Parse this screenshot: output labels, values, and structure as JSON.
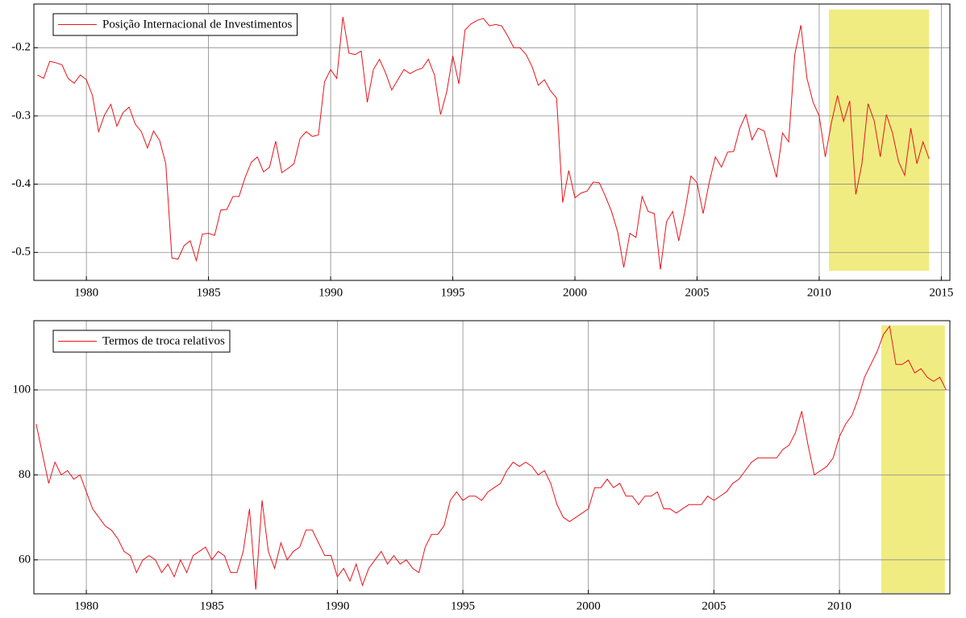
{
  "chart_data": [
    {
      "type": "line",
      "xlim": [
        1977.85,
        2015.35
      ],
      "ylim": [
        -0.541,
        -0.136
      ],
      "xticks": [
        1980,
        1985,
        1990,
        1995,
        2000,
        2005,
        2010,
        2015
      ],
      "yticks": [
        -0.5,
        -0.4,
        -0.3,
        -0.2
      ],
      "grid": true,
      "legend": "upper left",
      "highlight": {
        "x": [
          2010.4,
          2014.5
        ],
        "y": [
          -0.527,
          -0.144
        ],
        "color": "#f0ec82"
      },
      "x": [
        1978,
        1978.25,
        1978.5,
        1978.75,
        1979,
        1979.25,
        1979.5,
        1979.75,
        1980,
        1980.25,
        1980.5,
        1980.75,
        1981,
        1981.25,
        1981.5,
        1981.75,
        1982,
        1982.25,
        1982.5,
        1982.75,
        1983,
        1983.25,
        1983.5,
        1983.75,
        1984,
        1984.25,
        1984.5,
        1984.75,
        1985,
        1985.25,
        1985.5,
        1985.75,
        1986,
        1986.25,
        1986.5,
        1986.75,
        1987,
        1987.25,
        1987.5,
        1987.75,
        1988,
        1988.25,
        1988.5,
        1988.75,
        1989,
        1989.25,
        1989.5,
        1989.75,
        1990,
        1990.25,
        1990.5,
        1990.75,
        1991,
        1991.25,
        1991.5,
        1991.75,
        1992,
        1992.25,
        1992.5,
        1992.75,
        1993,
        1993.25,
        1993.5,
        1993.75,
        1994,
        1994.25,
        1994.5,
        1994.75,
        1995,
        1995.25,
        1995.5,
        1995.75,
        1996,
        1996.25,
        1996.5,
        1996.75,
        1997,
        1997.25,
        1997.5,
        1997.75,
        1998,
        1998.25,
        1998.5,
        1998.75,
        1999,
        1999.25,
        1999.5,
        1999.75,
        2000,
        2000.25,
        2000.5,
        2000.75,
        2001,
        2001.25,
        2001.5,
        2001.75,
        2002,
        2002.25,
        2002.5,
        2002.75,
        2003,
        2003.25,
        2003.5,
        2003.75,
        2004,
        2004.25,
        2004.5,
        2004.75,
        2005,
        2005.25,
        2005.5,
        2005.75,
        2006,
        2006.25,
        2006.5,
        2006.75,
        2007,
        2007.25,
        2007.5,
        2007.75,
        2008,
        2008.25,
        2008.5,
        2008.75,
        2009,
        2009.25,
        2009.5,
        2009.75,
        2010,
        2010.25,
        2010.5,
        2010.75,
        2011,
        2011.25,
        2011.5,
        2011.75,
        2012,
        2012.25,
        2012.5,
        2012.75,
        2013,
        2013.25,
        2013.5,
        2013.75,
        2014,
        2014.25,
        2014.5
      ],
      "series": [
        {
          "name": "Posição Internacional de Investimentos",
          "color": "#e8141c",
          "values": [
            -0.24,
            -0.245,
            -0.22,
            -0.222,
            -0.225,
            -0.245,
            -0.252,
            -0.24,
            -0.247,
            -0.27,
            -0.323,
            -0.298,
            -0.283,
            -0.315,
            -0.295,
            -0.287,
            -0.312,
            -0.323,
            -0.347,
            -0.322,
            -0.336,
            -0.37,
            -0.508,
            -0.51,
            -0.49,
            -0.483,
            -0.512,
            -0.473,
            -0.472,
            -0.475,
            -0.438,
            -0.437,
            -0.418,
            -0.418,
            -0.39,
            -0.368,
            -0.36,
            -0.382,
            -0.375,
            -0.337,
            -0.383,
            -0.377,
            -0.37,
            -0.333,
            -0.323,
            -0.33,
            -0.328,
            -0.25,
            -0.232,
            -0.245,
            -0.155,
            -0.208,
            -0.21,
            -0.205,
            -0.28,
            -0.232,
            -0.217,
            -0.237,
            -0.262,
            -0.247,
            -0.232,
            -0.238,
            -0.233,
            -0.23,
            -0.217,
            -0.24,
            -0.298,
            -0.265,
            -0.212,
            -0.253,
            -0.174,
            -0.165,
            -0.16,
            -0.157,
            -0.168,
            -0.166,
            -0.168,
            -0.183,
            -0.2,
            -0.2,
            -0.21,
            -0.228,
            -0.255,
            -0.247,
            -0.263,
            -0.274,
            -0.427,
            -0.38,
            -0.42,
            -0.413,
            -0.41,
            -0.397,
            -0.398,
            -0.418,
            -0.44,
            -0.47,
            -0.522,
            -0.472,
            -0.478,
            -0.418,
            -0.44,
            -0.443,
            -0.525,
            -0.455,
            -0.44,
            -0.483,
            -0.44,
            -0.388,
            -0.398,
            -0.443,
            -0.397,
            -0.36,
            -0.375,
            -0.353,
            -0.352,
            -0.318,
            -0.298,
            -0.335,
            -0.318,
            -0.322,
            -0.357,
            -0.39,
            -0.325,
            -0.338,
            -0.21,
            -0.167,
            -0.245,
            -0.28,
            -0.3,
            -0.36,
            -0.31,
            -0.27,
            -0.308,
            -0.278,
            -0.415,
            -0.37,
            -0.282,
            -0.307,
            -0.36,
            -0.298,
            -0.325,
            -0.367,
            -0.387,
            -0.318,
            -0.37,
            -0.338,
            -0.363
          ]
        }
      ]
    },
    {
      "type": "line",
      "xlim": [
        1977.91,
        2014.4
      ],
      "ylim": [
        52.0,
        116.3
      ],
      "xticks": [
        1980,
        1985,
        1990,
        1995,
        2000,
        2005,
        2010
      ],
      "yticks": [
        60,
        80,
        100
      ],
      "grid": true,
      "legend": "upper left",
      "highlight": {
        "x": [
          2011.67,
          2014.2
        ],
        "y": [
          52.2,
          115.2
        ],
        "color": "#f0ec82"
      },
      "x": [
        1978,
        1978.25,
        1978.5,
        1978.75,
        1979,
        1979.25,
        1979.5,
        1979.75,
        1980,
        1980.25,
        1980.5,
        1980.75,
        1981,
        1981.25,
        1981.5,
        1981.75,
        1982,
        1982.25,
        1982.5,
        1982.75,
        1983,
        1983.25,
        1983.5,
        1983.75,
        1984,
        1984.25,
        1984.5,
        1984.75,
        1985,
        1985.25,
        1985.5,
        1985.75,
        1986,
        1986.25,
        1986.5,
        1986.75,
        1987,
        1987.25,
        1987.5,
        1987.75,
        1988,
        1988.25,
        1988.5,
        1988.75,
        1989,
        1989.25,
        1989.5,
        1989.75,
        1990,
        1990.25,
        1990.5,
        1990.75,
        1991,
        1991.25,
        1991.5,
        1991.75,
        1992,
        1992.25,
        1992.5,
        1992.75,
        1993,
        1993.25,
        1993.5,
        1993.75,
        1994,
        1994.25,
        1994.5,
        1994.75,
        1995,
        1995.25,
        1995.5,
        1995.75,
        1996,
        1996.25,
        1996.5,
        1996.75,
        1997,
        1997.25,
        1997.5,
        1997.75,
        1998,
        1998.25,
        1998.5,
        1998.75,
        1999,
        1999.25,
        1999.5,
        1999.75,
        2000,
        2000.25,
        2000.5,
        2000.75,
        2001,
        2001.25,
        2001.5,
        2001.75,
        2002,
        2002.25,
        2002.5,
        2002.75,
        2003,
        2003.25,
        2003.5,
        2003.75,
        2004,
        2004.25,
        2004.5,
        2004.75,
        2005,
        2005.25,
        2005.5,
        2005.75,
        2006,
        2006.25,
        2006.5,
        2006.75,
        2007,
        2007.25,
        2007.5,
        2007.75,
        2008,
        2008.25,
        2008.5,
        2008.75,
        2009,
        2009.25,
        2009.5,
        2009.75,
        2010,
        2010.25,
        2010.5,
        2010.75,
        2011,
        2011.25,
        2011.5,
        2011.75,
        2012,
        2012.25,
        2012.5,
        2012.75,
        2013,
        2013.25,
        2013.5,
        2013.75,
        2014,
        2014.25
      ],
      "series": [
        {
          "name": "Termos de troca relativos",
          "color": "#e8141c",
          "values": [
            92,
            85,
            78,
            83,
            80,
            81,
            79,
            80,
            76,
            72,
            70,
            68,
            67,
            65,
            62,
            61,
            57,
            60,
            61,
            60,
            57,
            59,
            56,
            60,
            57,
            61,
            62,
            63,
            60,
            62,
            61,
            57,
            57,
            62,
            72,
            53,
            74,
            62,
            58,
            64,
            60,
            62,
            63,
            67,
            67,
            64,
            61,
            61,
            56,
            58,
            55,
            59,
            54,
            58,
            60,
            62,
            59,
            61,
            59,
            60,
            58,
            57,
            63,
            66,
            66,
            68,
            74,
            76,
            74,
            75,
            75,
            74,
            76,
            77,
            78,
            81,
            83,
            82,
            83,
            82,
            80,
            81,
            78,
            73,
            70,
            69,
            70,
            71,
            72,
            77,
            77,
            79,
            77,
            78,
            75,
            75,
            73,
            75,
            75,
            76,
            72,
            72,
            71,
            72,
            73,
            73,
            73,
            75,
            74,
            75,
            76,
            78,
            79,
            81,
            83,
            84,
            84,
            84,
            84,
            86,
            87,
            90,
            95,
            87,
            80,
            81,
            82,
            84,
            89,
            92,
            94,
            98,
            103,
            106,
            109,
            113,
            115,
            106,
            106,
            107,
            104,
            105,
            103,
            102,
            103,
            100
          ]
        }
      ]
    }
  ]
}
